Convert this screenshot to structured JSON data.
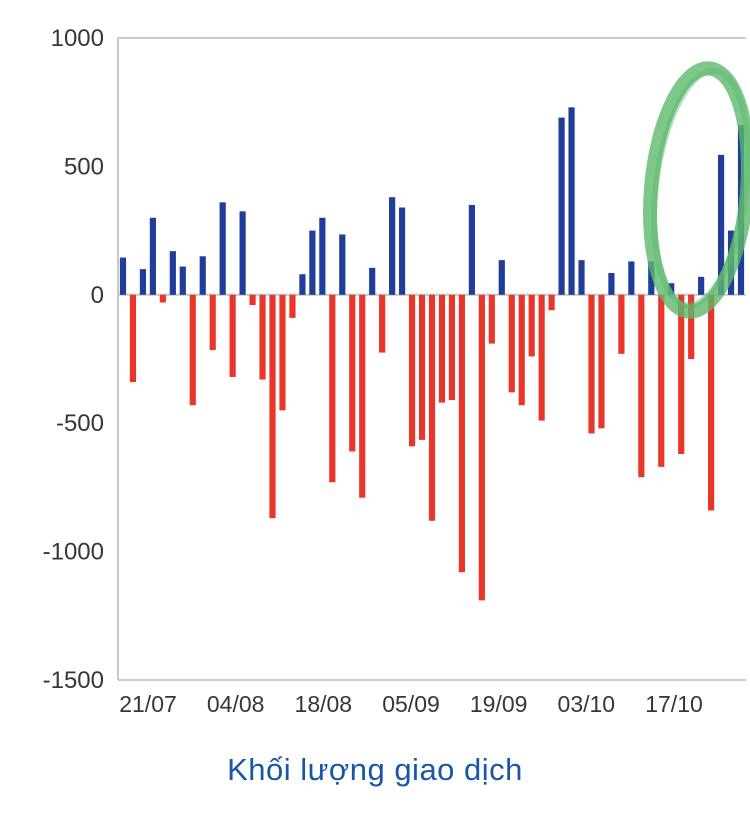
{
  "chart_data": {
    "type": "bar",
    "title": "Khối lượng giao dịch",
    "title_color": "#1a56a8",
    "positive_color": "#1f3d99",
    "negative_color": "#e8362b",
    "axis_text_color": "#373737",
    "gridline_color": "#c9c9c9",
    "background_color": "#ffffff",
    "ylim": [
      -1500,
      1000
    ],
    "y_ticks": [
      1000,
      500,
      0,
      -500,
      -1000,
      -1500
    ],
    "x_tick_labels": [
      "21/07",
      "04/08",
      "18/08",
      "05/09",
      "19/09",
      "03/10",
      "17/10"
    ],
    "xlabel": "",
    "ylabel": "",
    "legend_position": "bottom",
    "grid": "minimal",
    "values": [
      145,
      -340,
      100,
      300,
      -30,
      170,
      110,
      -430,
      150,
      -215,
      360,
      -320,
      325,
      -40,
      -330,
      -870,
      -450,
      -90,
      80,
      250,
      300,
      -730,
      235,
      -610,
      -790,
      105,
      -225,
      380,
      340,
      -590,
      -565,
      -880,
      -420,
      -410,
      -1080,
      350,
      -1190,
      -190,
      135,
      -380,
      -430,
      -240,
      -490,
      -60,
      690,
      730,
      135,
      -540,
      -520,
      85,
      -230,
      130,
      -710,
      130,
      -670,
      45,
      -620,
      -250,
      70,
      -840,
      545,
      250,
      660
    ],
    "annotation": {
      "shape": "hand-drawn-ellipse",
      "color": "#5cb96e",
      "opacity": 0.8,
      "meaning": "highlight around the most recent buying-volume bars"
    }
  }
}
